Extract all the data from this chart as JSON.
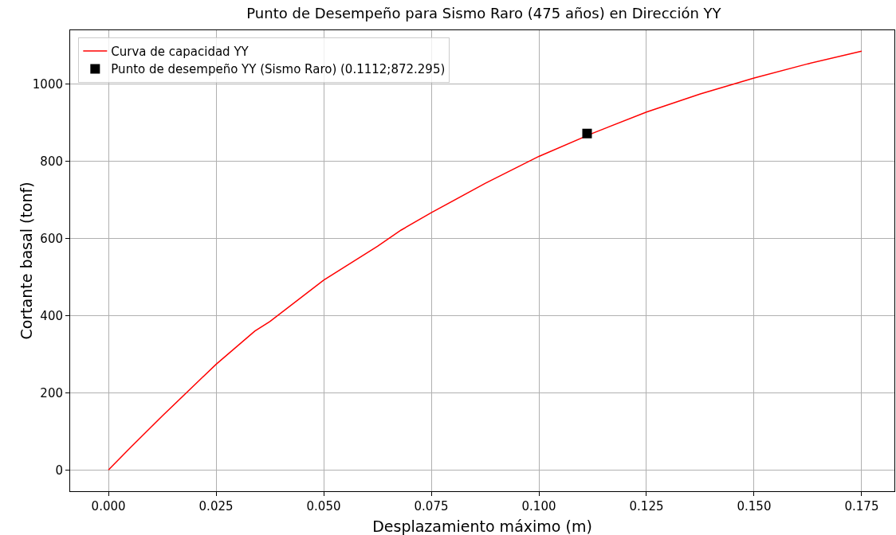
{
  "chart_data": {
    "type": "line",
    "title": "Punto de Desempeño para Sismo Raro (475 años) en Dirección YY",
    "xlabel": "Desplazamiento máximo (m)",
    "ylabel": "Cortante basal (tonf)",
    "series": [
      {
        "name": "Curva de capacidad YY",
        "color": "#ff0000",
        "marker": "none",
        "line_style": "solid",
        "x": [
          0,
          0.005,
          0.0125,
          0.025,
          0.034,
          0.0375,
          0.05,
          0.0625,
          0.068,
          0.075,
          0.0875,
          0.1,
          0.1125,
          0.125,
          0.1375,
          0.15,
          0.1625,
          0.175
        ],
        "values": [
          0,
          57,
          140,
          274,
          360,
          385,
          492,
          580,
          622,
          667,
          743,
          813,
          873,
          928,
          975,
          1016,
          1053,
          1086
        ]
      },
      {
        "name": "Punto de desempeño YY (Sismo Raro) (0.1112;872.295)",
        "type": "scatter",
        "color": "#000000",
        "marker": "square",
        "x": [
          0.1112
        ],
        "values": [
          872.295
        ]
      }
    ],
    "xlim": [
      -0.0089,
      0.1826
    ],
    "xticks": [
      {
        "value": 0,
        "label": "0.000"
      },
      {
        "value": 0.025,
        "label": "0.025"
      },
      {
        "value": 0.05,
        "label": "0.050"
      },
      {
        "value": 0.075,
        "label": "0.075"
      },
      {
        "value": 0.1,
        "label": "0.100"
      },
      {
        "value": 0.125,
        "label": "0.125"
      },
      {
        "value": 0.15,
        "label": "0.150"
      },
      {
        "value": 0.175,
        "label": "0.175"
      }
    ],
    "ylim": [
      -55,
      1140
    ],
    "yticks": [
      0,
      200,
      400,
      600,
      800,
      1000
    ],
    "grid": true,
    "legend": "top left"
  }
}
